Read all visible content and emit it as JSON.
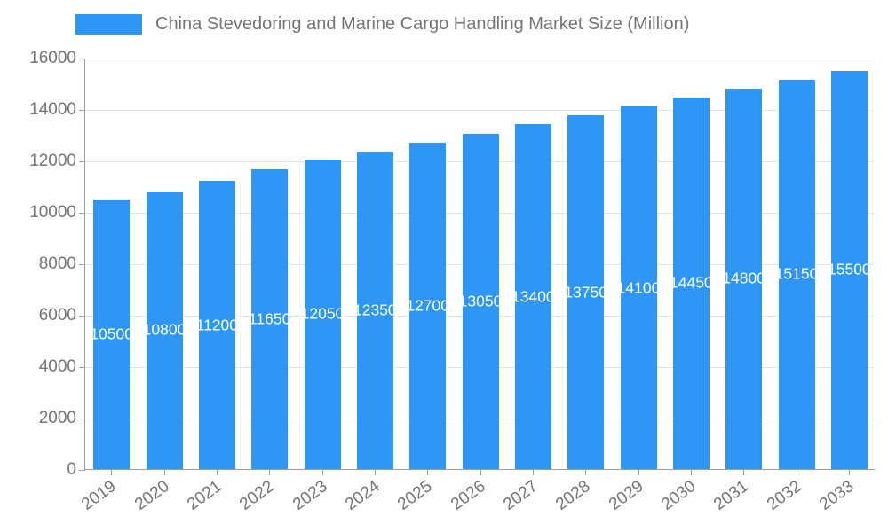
{
  "chart_data": {
    "type": "bar",
    "title": "China Stevedoring and Marine Cargo Handling Market Size (Million)",
    "categories": [
      "2019",
      "2020",
      "2021",
      "2022",
      "2023",
      "2024",
      "2025",
      "2026",
      "2027",
      "2028",
      "2029",
      "2030",
      "2031",
      "2032",
      "2033"
    ],
    "values": [
      10500,
      10800,
      11200,
      11650,
      12050,
      12350,
      12700,
      13050,
      13400,
      13750,
      14100,
      14450,
      14800,
      15150,
      15500
    ],
    "xlabel": "",
    "ylabel": "",
    "ylim": [
      0,
      16000
    ],
    "ytick_step": 2000,
    "grid": true,
    "legend_position": "top-left",
    "bar_color": "#2E96F4",
    "value_label_color": "#ffffff",
    "axis_text_color": "#757575",
    "grid_color": "#e3e3e3",
    "axis_line_color": "#9e9e9e"
  }
}
